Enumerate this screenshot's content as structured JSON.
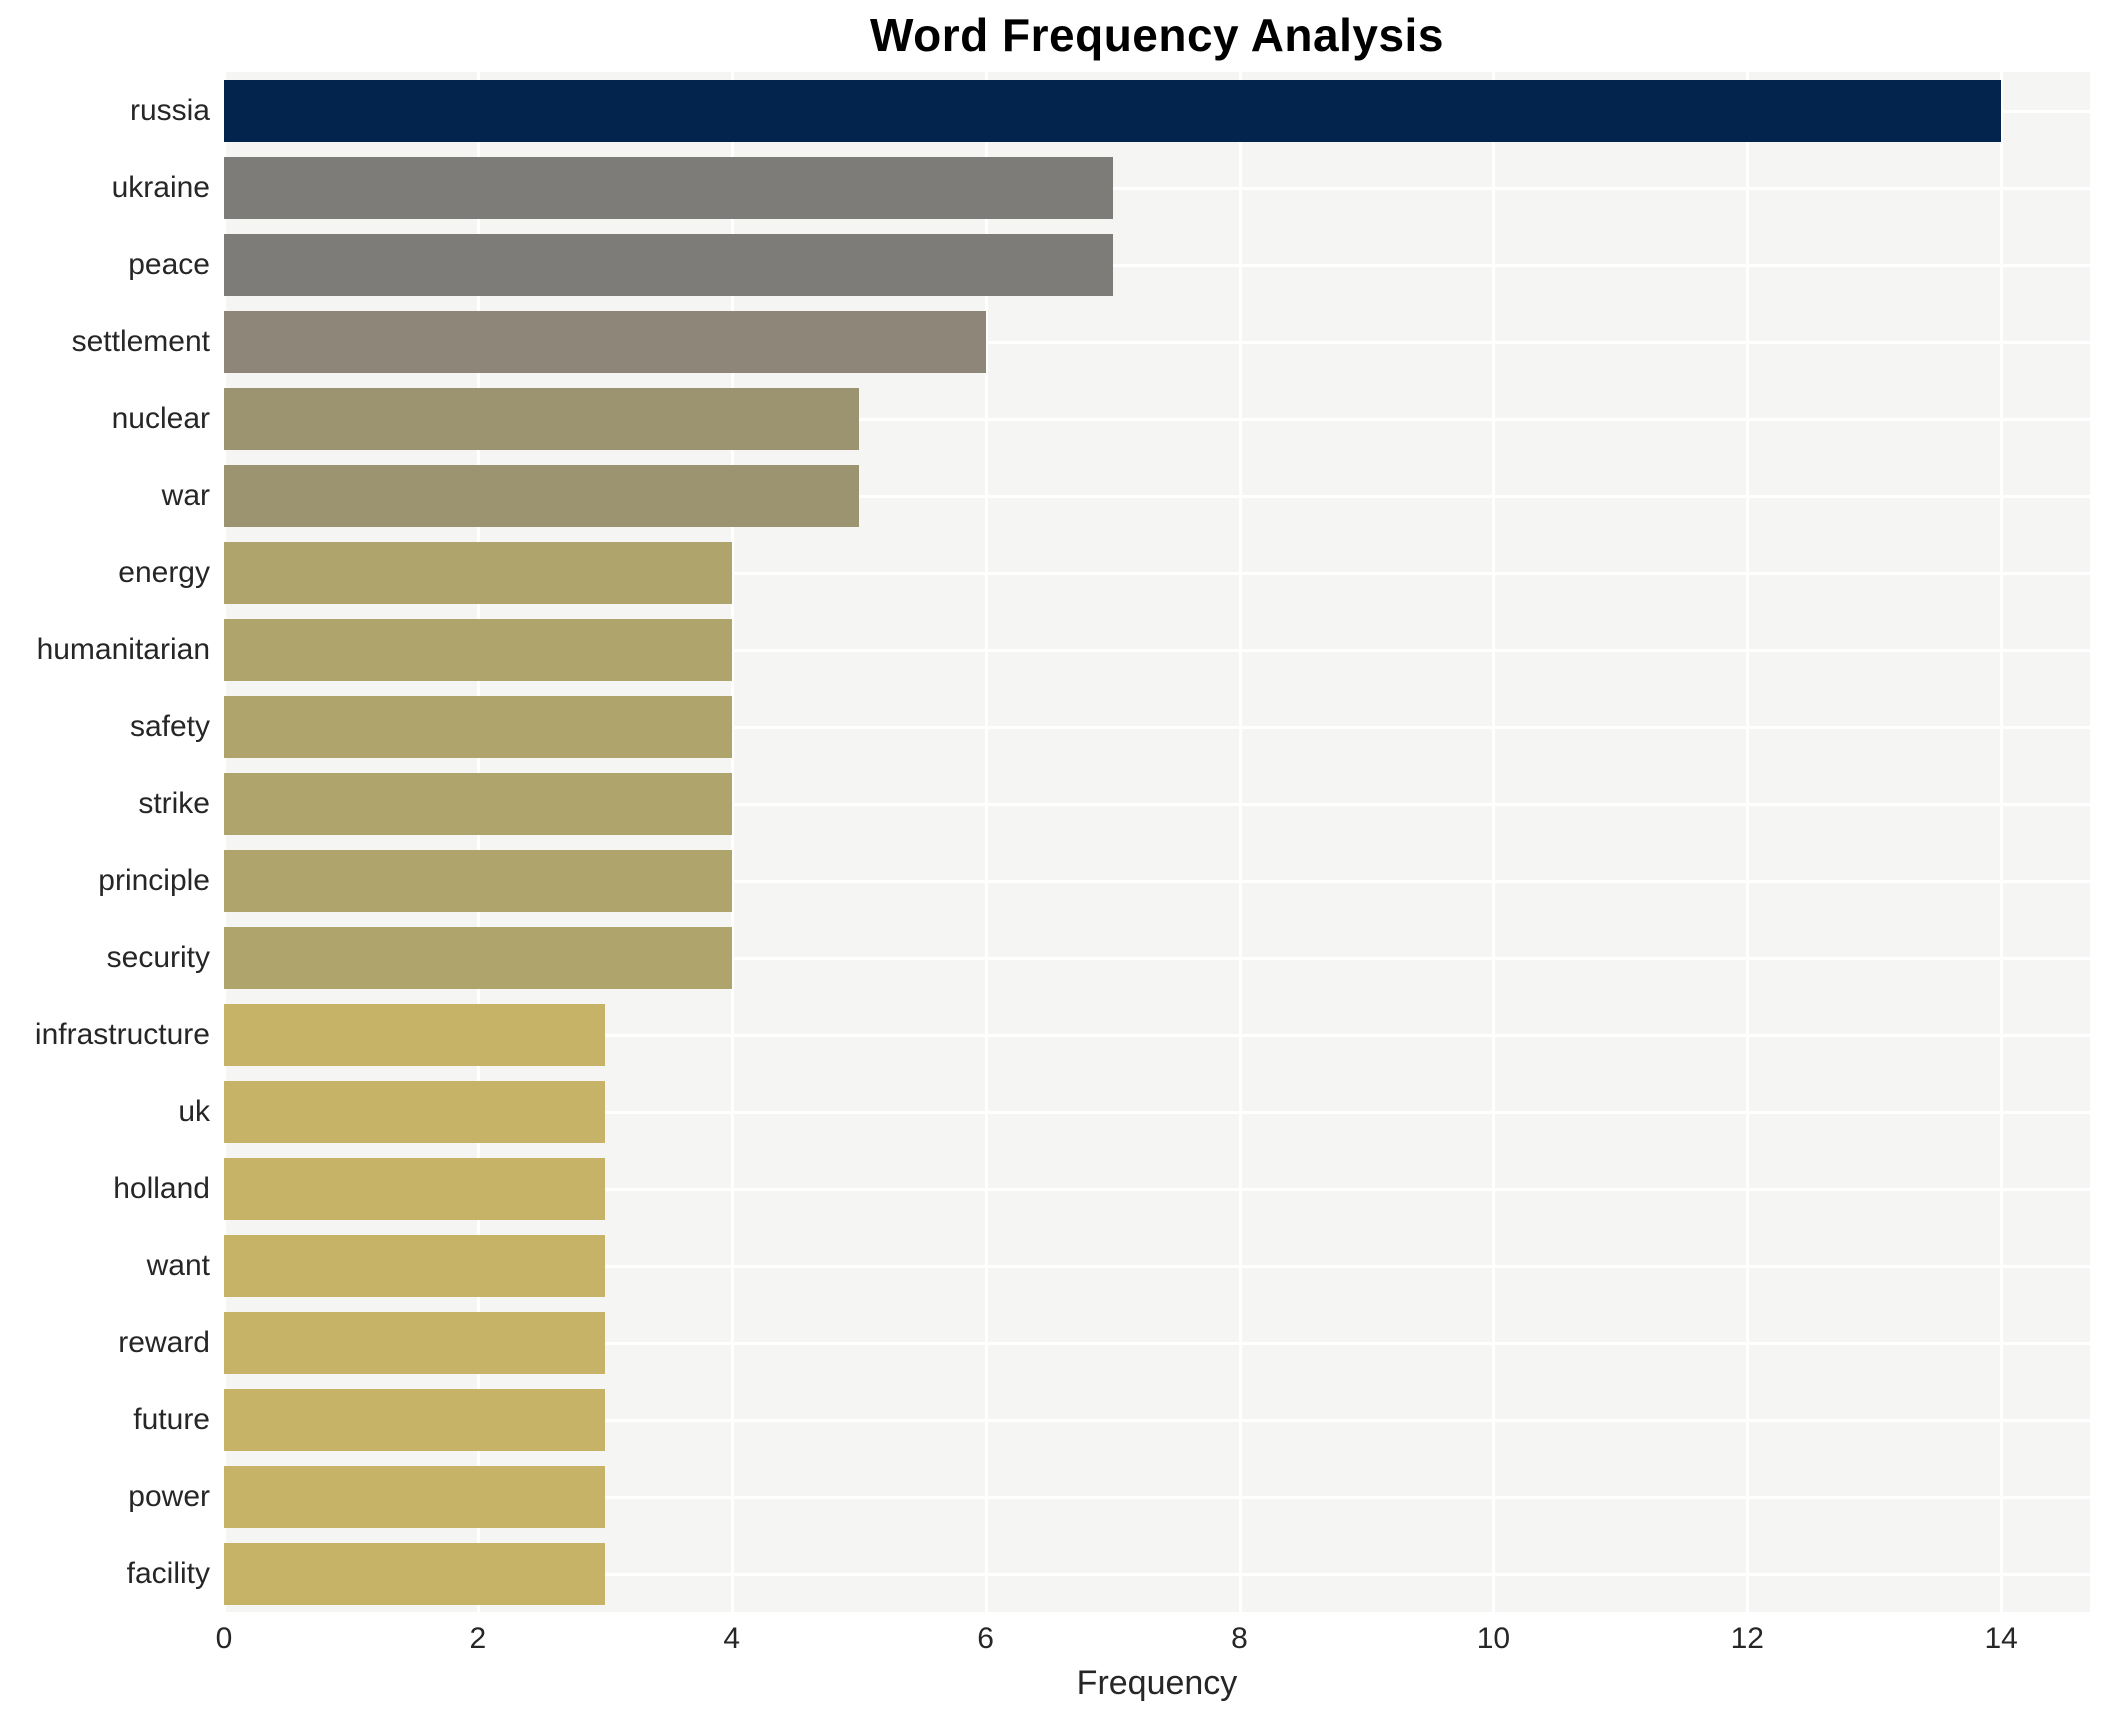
{
  "title": "Word Frequency Analysis",
  "chart_data": {
    "type": "bar",
    "orientation": "horizontal",
    "title": "Word Frequency Analysis",
    "xlabel": "Frequency",
    "ylabel": "",
    "categories": [
      "russia",
      "ukraine",
      "peace",
      "settlement",
      "nuclear",
      "war",
      "energy",
      "humanitarian",
      "safety",
      "strike",
      "principle",
      "security",
      "infrastructure",
      "uk",
      "holland",
      "want",
      "reward",
      "future",
      "power",
      "facility"
    ],
    "values": [
      14,
      7,
      7,
      6,
      5,
      5,
      4,
      4,
      4,
      4,
      4,
      4,
      3,
      3,
      3,
      3,
      3,
      3,
      3,
      3
    ],
    "bar_colors": [
      "#03244d",
      "#7d7c78",
      "#7d7c78",
      "#8e8779",
      "#9c9370",
      "#9c9370",
      "#b0a46d",
      "#b0a46d",
      "#b0a46d",
      "#b0a46d",
      "#b0a46d",
      "#b0a46d",
      "#c6b367",
      "#c6b367",
      "#c6b367",
      "#c6b367",
      "#c6b367",
      "#c6b367",
      "#c6b367",
      "#c6b367"
    ],
    "xticks": [
      0,
      2,
      4,
      6,
      8,
      10,
      12,
      14
    ],
    "xlim": [
      0,
      14.7
    ],
    "grid": true,
    "legend": "none",
    "plot_background": "#f5f5f4",
    "grid_color": "#ffffff",
    "tick_label_color": "#262626",
    "title_color": "#000000"
  }
}
